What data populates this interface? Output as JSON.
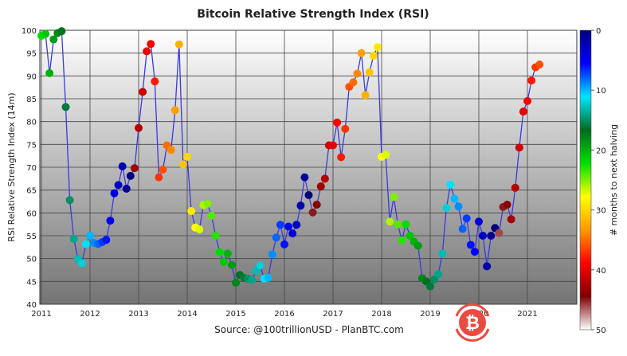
{
  "chart_data": {
    "type": "scatter",
    "title": "Bitcoin Relative Strength Index (RSI)",
    "ylabel": "RSI Relative Strength Index (14m)",
    "xlabel": "",
    "source": "Source: @100trillionUSD  -  PlanBTC.com",
    "colorbar": {
      "label": "# months to next halving",
      "range": [
        0,
        50
      ],
      "ticks": [
        "0",
        "10",
        "20",
        "30",
        "40",
        "50"
      ],
      "colormap": [
        "#00007f",
        "#0000ff",
        "#00e5ff",
        "#006b1f",
        "#00e000",
        "#ffff00",
        "#ff9900",
        "#ff0000",
        "#7f0000",
        "#ffffff"
      ]
    },
    "xlim": [
      2011,
      2022
    ],
    "ylim": [
      40,
      100
    ],
    "xticks": [
      "2011",
      "2012",
      "2013",
      "2014",
      "2015",
      "2016",
      "2017",
      "2018",
      "2019",
      "2020",
      "2021"
    ],
    "yticks": [
      "40",
      "45",
      "50",
      "55",
      "60",
      "65",
      "70",
      "75",
      "80",
      "85",
      "90",
      "95",
      "100"
    ],
    "grid": true,
    "line_color": "#3a3adf",
    "start_month": "2011-01",
    "frequency": "monthly",
    "rsi": [
      98.8,
      99.2,
      90.6,
      98.0,
      99.4,
      99.8,
      83.2,
      62.8,
      54.3,
      49.9,
      49.0,
      53.2,
      55.0,
      53.4,
      53.2,
      53.6,
      54.1,
      58.3,
      64.3,
      66.1,
      70.2,
      65.3,
      68.1,
      69.8,
      78.6,
      86.5,
      95.4,
      97.0,
      88.8,
      67.8,
      69.5,
      74.8,
      73.8,
      82.5,
      96.9,
      70.6,
      72.3,
      60.4,
      56.8,
      56.4,
      61.7,
      62.0,
      59.4,
      55.0,
      51.4,
      49.3,
      51.1,
      48.6,
      44.7,
      46.4,
      45.8,
      45.6,
      45.3,
      47.3,
      48.5,
      45.6,
      45.8,
      50.9,
      54.6,
      57.4,
      53.1,
      57.0,
      55.5,
      57.4,
      61.6,
      67.8,
      63.9,
      60.1,
      61.8,
      65.8,
      67.5,
      74.8,
      74.8,
      79.8,
      72.2,
      78.4,
      87.6,
      88.6,
      90.5,
      95.0,
      85.8,
      90.8,
      94.4,
      96.3,
      72.3,
      72.7,
      58.1,
      63.5,
      57.5,
      54.0,
      57.5,
      55.0,
      53.7,
      52.8,
      45.7,
      45.0,
      43.9,
      45.4,
      46.6,
      51.1,
      61.1,
      66.2,
      63.1,
      61.4,
      56.5,
      58.8,
      53.0,
      51.5,
      58.1,
      55.0,
      48.3,
      55.0,
      56.7,
      55.6,
      61.3,
      61.8,
      58.6,
      65.5,
      74.3,
      82.2,
      84.5,
      89.0,
      91.9,
      92.5
    ],
    "months_to_next_halving": [
      22,
      21,
      20,
      19,
      18,
      17,
      16,
      15,
      14,
      13,
      12,
      11,
      10,
      9,
      8,
      7,
      6,
      5,
      4,
      3,
      2,
      1,
      0,
      43,
      42,
      41,
      40,
      39,
      38,
      37,
      36,
      35,
      34,
      33,
      32,
      31,
      30,
      29,
      28,
      27,
      26,
      25,
      24,
      23,
      22,
      21,
      20,
      19,
      18,
      17,
      16,
      15,
      14,
      13,
      12,
      11,
      10,
      9,
      8,
      7,
      6,
      5,
      4,
      3,
      2,
      1,
      0,
      45,
      44,
      43,
      42,
      41,
      40,
      39,
      38,
      37,
      36,
      35,
      34,
      33,
      32,
      31,
      30,
      29,
      28,
      27,
      26,
      25,
      24,
      23,
      22,
      21,
      20,
      19,
      18,
      17,
      16,
      15,
      14,
      13,
      12,
      11,
      10,
      9,
      8,
      7,
      6,
      5,
      4,
      3,
      2,
      1,
      0,
      46,
      45,
      44,
      43,
      42,
      41,
      40,
      39,
      38,
      37,
      36
    ]
  },
  "watermark": "bitcoin-logo"
}
